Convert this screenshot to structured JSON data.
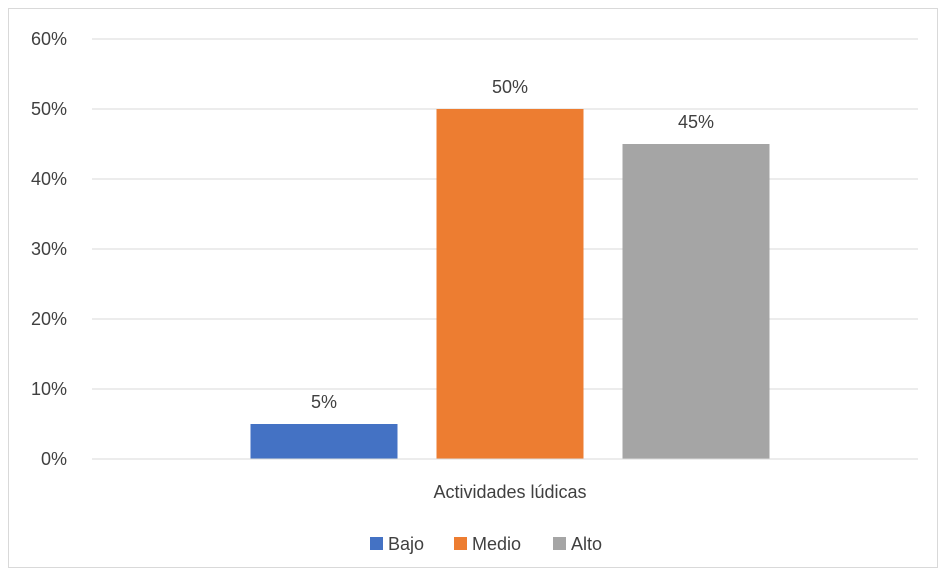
{
  "chart_data": {
    "type": "bar",
    "title": "",
    "xlabel": "",
    "ylabel": "",
    "categories": [
      "Actividades lúdicas"
    ],
    "series": [
      {
        "name": "Bajo",
        "values": [
          5
        ],
        "color": "#4472c4",
        "data_label": "5%"
      },
      {
        "name": "Medio",
        "values": [
          50
        ],
        "color": "#ed7d31",
        "data_label": "50%"
      },
      {
        "name": "Alto",
        "values": [
          45
        ],
        "color": "#a5a5a5",
        "data_label": "45%"
      }
    ],
    "ylim": [
      0,
      60
    ],
    "yticks": [
      0,
      10,
      20,
      30,
      40,
      50,
      60
    ],
    "ytick_labels": [
      "0%",
      "10%",
      "20%",
      "30%",
      "40%",
      "50%",
      "60%"
    ],
    "grid": true,
    "legend_position": "bottom"
  }
}
